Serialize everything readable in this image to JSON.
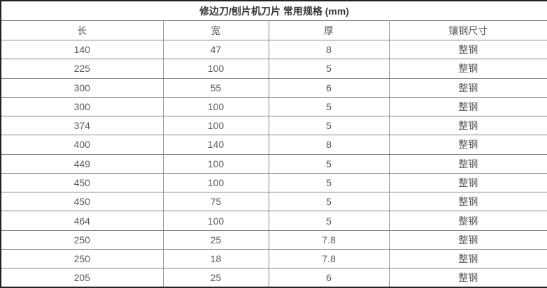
{
  "chart_data": {
    "type": "table",
    "title": "修边刀/刨片机刀片 常用规格 (mm)",
    "columns": [
      "长",
      "宽",
      "厚",
      "镶钢尺寸"
    ],
    "rows": [
      [
        "140",
        "47",
        "8",
        "整钢"
      ],
      [
        "225",
        "100",
        "5",
        "整钢"
      ],
      [
        "300",
        "55",
        "6",
        "整钢"
      ],
      [
        "300",
        "100",
        "5",
        "整钢"
      ],
      [
        "374",
        "100",
        "5",
        "整钢"
      ],
      [
        "400",
        "140",
        "8",
        "整钢"
      ],
      [
        "449",
        "100",
        "5",
        "整钢"
      ],
      [
        "450",
        "100",
        "5",
        "整钢"
      ],
      [
        "450",
        "75",
        "5",
        "整钢"
      ],
      [
        "464",
        "100",
        "5",
        "整钢"
      ],
      [
        "250",
        "25",
        "7.8",
        "整钢"
      ],
      [
        "250",
        "18",
        "7.8",
        "整钢"
      ],
      [
        "205",
        "25",
        "6",
        "整钢"
      ]
    ],
    "layout": {
      "grid": "on",
      "title_position": "top-center-spanning-row",
      "cell_alignment": "center"
    },
    "colors": {
      "outer_border": "#222222",
      "inner_border": "#848484",
      "body_text": "#595959",
      "title_text": "#333333",
      "background": "#ffffff"
    }
  }
}
